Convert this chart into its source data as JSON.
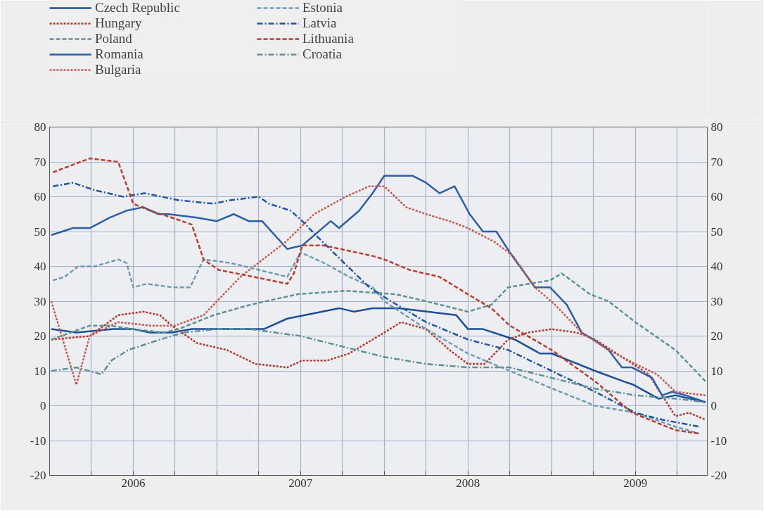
{
  "chart_data": {
    "type": "line",
    "legend": "top",
    "grid": true,
    "xlim": [
      2006.0,
      2009.93
    ],
    "ylim": [
      -20,
      80
    ],
    "y2lim": [
      -20,
      80
    ],
    "yticks": [
      -20,
      -10,
      0,
      10,
      20,
      30,
      40,
      50,
      60,
      70,
      80
    ],
    "y2ticks": [
      -20,
      -10,
      0,
      10,
      20,
      30,
      40,
      50,
      60,
      70,
      80
    ],
    "xticks": [
      {
        "value": 2006.25,
        "label": null
      },
      {
        "value": 2006.5,
        "label": "2006"
      },
      {
        "value": 2006.75,
        "label": null
      },
      {
        "value": 2007.0,
        "label": null
      },
      {
        "value": 2007.25,
        "label": null
      },
      {
        "value": 2007.5,
        "label": "2007"
      },
      {
        "value": 2007.75,
        "label": null
      },
      {
        "value": 2008.0,
        "label": null
      },
      {
        "value": 2008.25,
        "label": null
      },
      {
        "value": 2008.5,
        "label": "2008"
      },
      {
        "value": 2008.75,
        "label": null
      },
      {
        "value": 2009.0,
        "label": null
      },
      {
        "value": 2009.25,
        "label": null
      },
      {
        "value": 2009.5,
        "label": "2009"
      },
      {
        "value": 2009.75,
        "label": null
      }
    ],
    "series": [
      {
        "name": "Czech Republic",
        "color": "#1c4f9a",
        "line_style": "solid",
        "x": [
          2006.01,
          2006.16,
          2006.38,
          2006.5,
          2006.6,
          2006.73,
          2006.85,
          2007.06,
          2007.28,
          2007.42,
          2007.73,
          2007.82,
          2007.93,
          2008.07,
          2008.09,
          2008.43,
          2008.5,
          2008.59,
          2008.78,
          2008.93,
          2009.0,
          2009.26,
          2009.43,
          2009.49,
          2009.64,
          2009.74,
          2009.92
        ],
        "values": [
          22,
          21,
          22,
          22,
          21,
          21,
          22,
          22,
          22,
          25,
          28,
          27,
          28,
          28,
          28,
          26,
          22,
          22,
          19,
          15,
          15,
          10,
          7,
          6,
          2,
          3,
          1
        ]
      },
      {
        "name": "Hungary",
        "color": "#b8372f",
        "line_style": "dotted",
        "x": [
          2006.01,
          2006.24,
          2006.41,
          2006.56,
          2006.66,
          2006.73,
          2006.88,
          2007.06,
          2007.23,
          2007.42,
          2007.51,
          2007.66,
          2007.79,
          2007.93,
          2008.0,
          2008.1,
          2008.25,
          2008.39,
          2008.5,
          2008.6,
          2008.74,
          2008.86,
          2009.0,
          2009.15,
          2009.26,
          2009.42,
          2009.58,
          2009.74,
          2009.82,
          2009.92
        ],
        "values": [
          19,
          20,
          26,
          27,
          26,
          23,
          18,
          16,
          12,
          11,
          13,
          13,
          15,
          19,
          21,
          24,
          22,
          16,
          12,
          12,
          19,
          21,
          22,
          21,
          19,
          14,
          9,
          -3,
          -2,
          -4
        ]
      },
      {
        "name": "Poland",
        "color": "#5b9396",
        "line_style": "dashed",
        "x": [
          2006.01,
          2006.24,
          2006.36,
          2006.5,
          2006.68,
          2006.77,
          2006.98,
          2007.2,
          2007.48,
          2007.77,
          2008.07,
          2008.25,
          2008.5,
          2008.64,
          2008.74,
          2008.99,
          2009.06,
          2009.23,
          2009.34,
          2009.5,
          2009.74,
          2009.92
        ],
        "values": [
          19,
          23,
          23,
          22,
          21,
          22,
          26,
          29,
          32,
          33,
          32,
          30,
          27,
          29,
          34,
          36,
          38,
          32,
          30,
          24,
          16,
          7
        ]
      },
      {
        "name": "Romania",
        "color": "#2d5fa8",
        "line_style": "solid",
        "x": [
          2006.01,
          2006.14,
          2006.24,
          2006.36,
          2006.46,
          2006.56,
          2006.65,
          2006.71,
          2006.88,
          2007.0,
          2007.1,
          2007.19,
          2007.27,
          2007.42,
          2007.51,
          2007.68,
          2007.73,
          2007.85,
          2007.93,
          2008.0,
          2008.17,
          2008.25,
          2008.33,
          2008.42,
          2008.51,
          2008.59,
          2008.67,
          2008.75,
          2008.9,
          2008.99,
          2009.09,
          2009.18,
          2009.25,
          2009.34,
          2009.42,
          2009.48,
          2009.6,
          2009.66,
          2009.72,
          2009.8,
          2009.92
        ],
        "values": [
          49,
          51,
          51,
          54,
          56,
          57,
          55,
          55,
          54,
          53,
          55,
          53,
          53,
          45,
          46,
          53,
          51,
          56,
          61,
          66,
          66,
          64,
          61,
          63,
          55,
          50,
          50,
          44,
          34,
          34,
          29,
          21,
          19,
          16,
          11,
          11,
          8,
          3,
          4,
          3,
          1
        ]
      },
      {
        "name": "Bulgaria",
        "color": "#c9584e",
        "line_style": "dotted",
        "x": [
          2006.01,
          2006.16,
          2006.24,
          2006.41,
          2006.6,
          2006.75,
          2006.92,
          2007.06,
          2007.14,
          2007.41,
          2007.58,
          2007.77,
          2007.91,
          2008.0,
          2008.13,
          2008.25,
          2008.39,
          2008.5,
          2008.66,
          2008.77,
          2008.9,
          2009.02,
          2009.18,
          2009.34,
          2009.5,
          2009.63,
          2009.74,
          2009.92
        ],
        "values": [
          30,
          6,
          20,
          24,
          23,
          23,
          26,
          33,
          37,
          47,
          55,
          60,
          63,
          63,
          57,
          55,
          53,
          51,
          47,
          43,
          34,
          29,
          21,
          16,
          12,
          9,
          4,
          3
        ]
      },
      {
        "name": "Estonia",
        "color": "#6f9cb5",
        "line_style": "dashed",
        "x": [
          2006.02,
          2006.09,
          2006.17,
          2006.27,
          2006.41,
          2006.46,
          2006.5,
          2006.58,
          2006.73,
          2006.84,
          2006.92,
          2007.08,
          2007.25,
          2007.42,
          2007.5,
          2007.64,
          2007.79,
          2007.93,
          2008.0,
          2008.25,
          2008.5,
          2008.75,
          2009.0,
          2009.26,
          2009.5,
          2009.74,
          2009.88
        ],
        "values": [
          36,
          37,
          40,
          40,
          42,
          41,
          34,
          35,
          34,
          34,
          42,
          41,
          39,
          37,
          44,
          41,
          37,
          34,
          30,
          22,
          15,
          10,
          5,
          0,
          -2,
          -6,
          -8
        ]
      },
      {
        "name": "Latvia",
        "color": "#1f56a6",
        "line_style": "dashdot",
        "x": [
          2006.02,
          2006.14,
          2006.26,
          2006.44,
          2006.57,
          2006.77,
          2006.98,
          2007.08,
          2007.25,
          2007.31,
          2007.44,
          2007.51,
          2007.59,
          2007.76,
          2007.91,
          2008.04,
          2008.25,
          2008.5,
          2008.74,
          2009.0,
          2009.26,
          2009.5,
          2009.66,
          2009.88
        ],
        "values": [
          63,
          64,
          62,
          60,
          61,
          59,
          58,
          59,
          60,
          58,
          56,
          53,
          49,
          41,
          34,
          30,
          24,
          19,
          16,
          10,
          4,
          -2,
          -4,
          -6
        ]
      },
      {
        "name": "Lithuania",
        "color": "#bf3a2e",
        "line_style": "dashed",
        "x": [
          2006.02,
          2006.24,
          2006.41,
          2006.47,
          2006.5,
          2006.6,
          2006.73,
          2006.85,
          2006.92,
          2007.01,
          2007.22,
          2007.42,
          2007.46,
          2007.51,
          2007.64,
          2007.93,
          2008.0,
          2008.15,
          2008.33,
          2008.5,
          2008.64,
          2008.75,
          2009.0,
          2009.26,
          2009.48,
          2009.74,
          2009.88
        ],
        "values": [
          67,
          71,
          70,
          62,
          58,
          56,
          54,
          52,
          42,
          39,
          37,
          35,
          38,
          46,
          46,
          43,
          42,
          39,
          37,
          32,
          28,
          23,
          16,
          7,
          -2,
          -7,
          -8
        ]
      },
      {
        "name": "Croatia",
        "color": "#5b9396",
        "line_style": "dashdot",
        "x": [
          2006.01,
          2006.16,
          2006.31,
          2006.37,
          2006.47,
          2006.66,
          2006.8,
          2007.0,
          2007.2,
          2007.5,
          2007.75,
          2008.0,
          2008.25,
          2008.5,
          2008.75,
          2009.0,
          2009.25,
          2009.5,
          2009.75,
          2009.92
        ],
        "values": [
          10,
          11,
          9,
          13,
          16,
          19,
          21,
          22,
          22,
          20,
          17,
          14,
          12,
          11,
          11,
          8,
          5,
          3,
          2,
          1
        ]
      }
    ]
  }
}
